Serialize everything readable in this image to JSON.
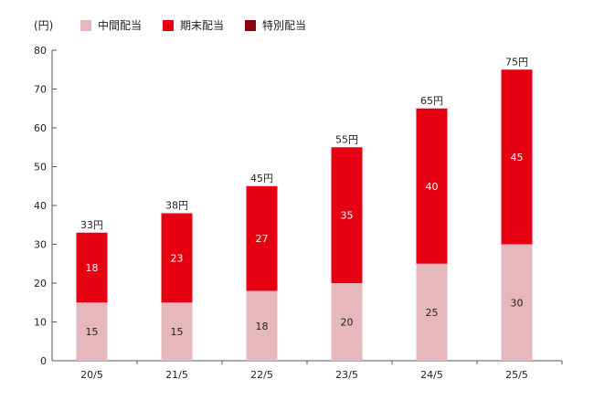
{
  "chart_data": {
    "type": "bar",
    "stacked": true,
    "unit_label": "(円)",
    "categories": [
      "20/5",
      "21/5",
      "22/5",
      "23/5",
      "24/5",
      "25/5"
    ],
    "series": [
      {
        "name": "中間配当",
        "color": "#e6b8bd",
        "values": [
          15,
          15,
          18,
          20,
          25,
          30
        ]
      },
      {
        "name": "期末配当",
        "color": "#e60012",
        "values": [
          18,
          23,
          27,
          35,
          40,
          45
        ]
      },
      {
        "name": "特別配当",
        "color": "#8c0010",
        "values": [
          0,
          0,
          0,
          0,
          0,
          0
        ]
      }
    ],
    "totals": [
      "33円",
      "38円",
      "45円",
      "55円",
      "65円",
      "75円"
    ],
    "yticks": [
      0,
      10,
      20,
      30,
      40,
      50,
      60,
      70,
      80
    ],
    "ylim": [
      0,
      80
    ],
    "legend": "top",
    "grid": false
  }
}
